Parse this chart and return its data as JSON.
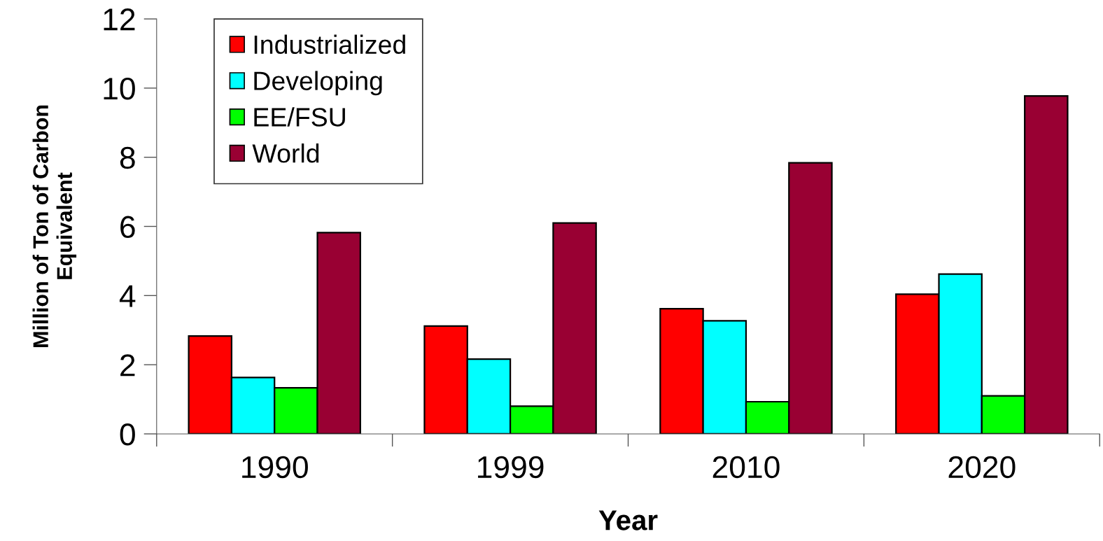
{
  "chart_data": {
    "type": "bar",
    "xlabel": "Year",
    "ylabel": "Million of Ton of Carbon\nEquivalent",
    "categories": [
      "1990",
      "1999",
      "2010",
      "2020"
    ],
    "series": [
      {
        "name": "Industrialized",
        "color": "#ff0000",
        "values": [
          2.83,
          3.12,
          3.62,
          4.04
        ]
      },
      {
        "name": "Developing",
        "color": "#00ffff",
        "values": [
          1.63,
          2.16,
          3.27,
          4.62
        ]
      },
      {
        "name": "EE/FSU",
        "color": "#00ff00",
        "values": [
          1.33,
          0.8,
          0.93,
          1.1
        ]
      },
      {
        "name": "World",
        "color": "#990033",
        "values": [
          5.82,
          6.1,
          7.84,
          9.77
        ]
      }
    ],
    "ylim": [
      0,
      12
    ],
    "yticks": [
      0,
      2,
      4,
      6,
      8,
      10,
      12
    ],
    "legend": "top left"
  }
}
